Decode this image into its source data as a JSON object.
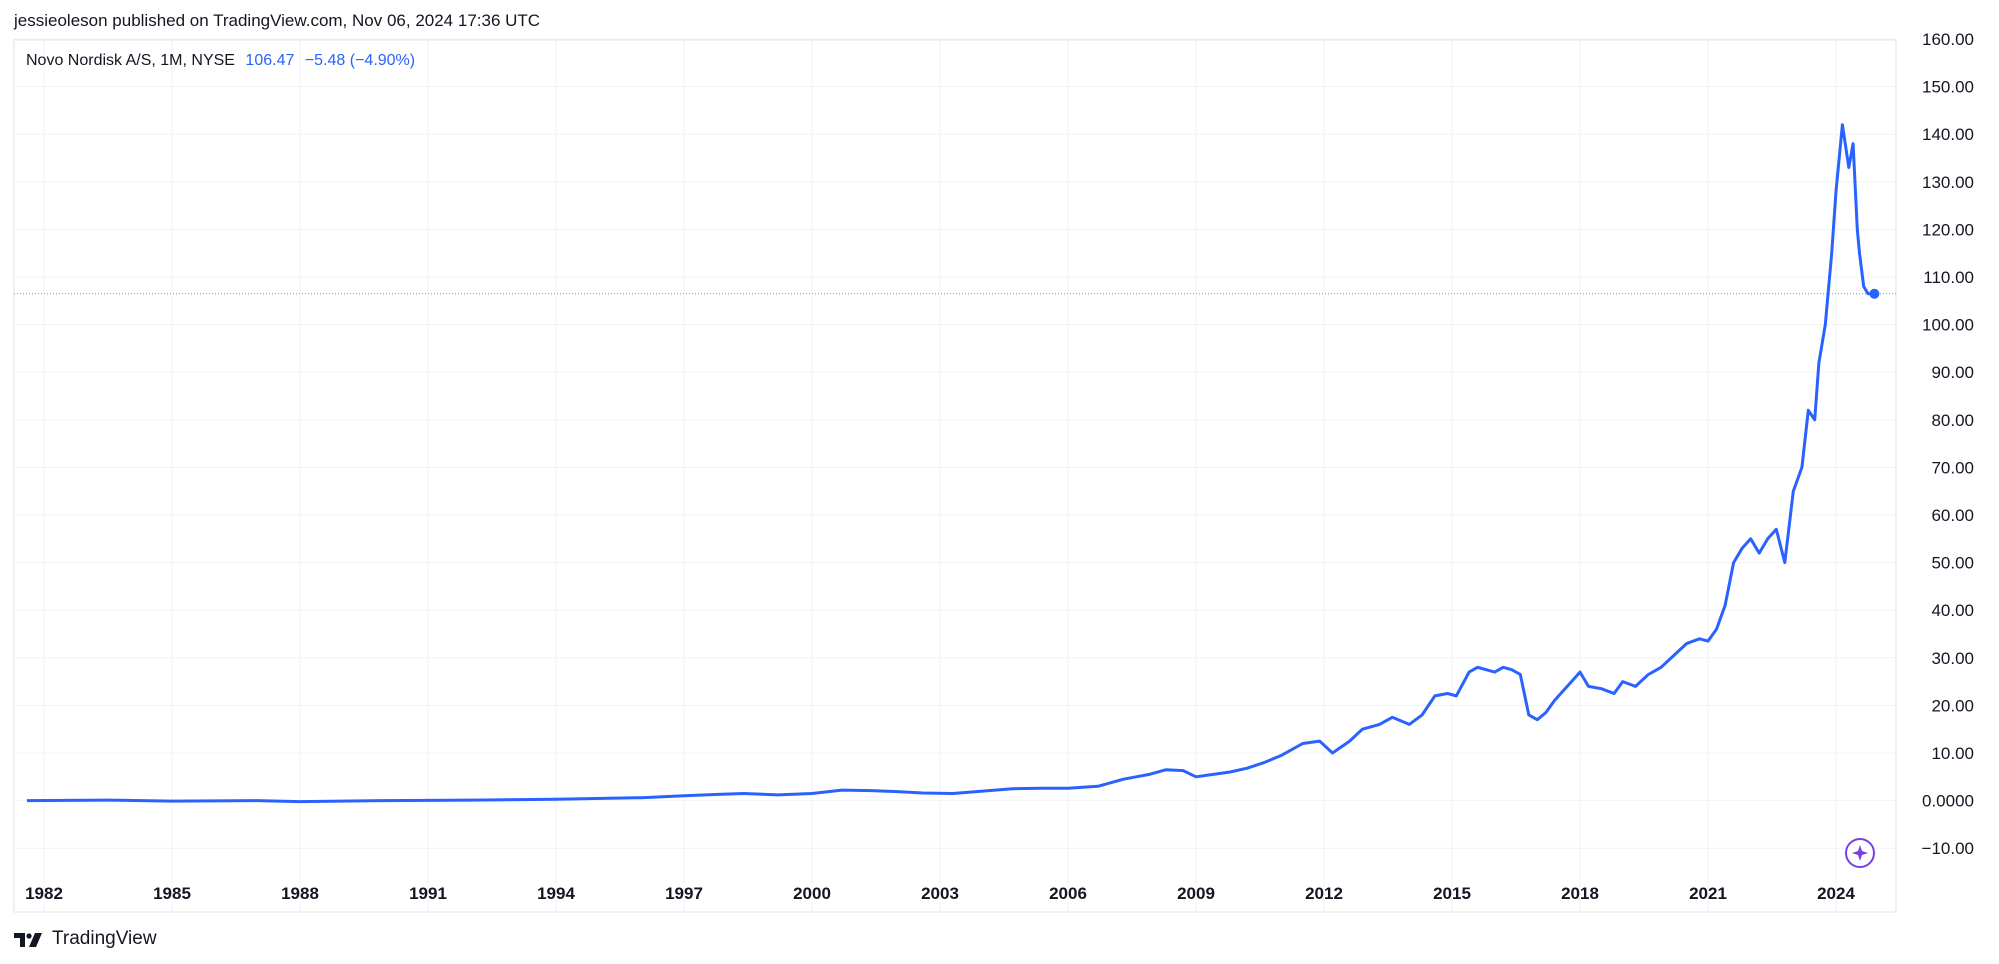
{
  "header": {
    "text": "jessieoleson published on TradingView.com, Nov 06, 2024 17:36 UTC"
  },
  "legend": {
    "symbol": "Novo Nordisk A/S, 1M, NYSE",
    "last": "106.47",
    "change": "−5.48 (−4.90%)"
  },
  "footer": {
    "brand": "TradingView",
    "logo_icon": "tradingview-logo-icon"
  },
  "colors": {
    "line": "#2962ff",
    "grid": "#f0f3fa",
    "text": "#131722",
    "marker": "#7b3fe4"
  },
  "chart_data": {
    "type": "line",
    "title": "",
    "xlabel": "",
    "ylabel": "",
    "ylim": [
      -12,
      160
    ],
    "xlim": [
      1981.6,
      2025.7
    ],
    "grid": true,
    "y_ticks": [
      "160.00",
      "150.00",
      "140.00",
      "130.00",
      "120.00",
      "110.00",
      "100.00",
      "90.00",
      "80.00",
      "70.00",
      "60.00",
      "50.00",
      "40.00",
      "30.00",
      "20.00",
      "10.00",
      "0.0000",
      "−10.00"
    ],
    "x_ticks": [
      "1982",
      "1985",
      "1988",
      "1991",
      "1994",
      "1997",
      "2000",
      "2003",
      "2006",
      "2009",
      "2012",
      "2015",
      "2018",
      "2021",
      "2024"
    ],
    "current_price": 106.47,
    "series": [
      {
        "name": "",
        "x": [
          1981.6,
          1983.5,
          1985,
          1987,
          1988,
          1990,
          1992,
          1994,
          1996,
          1997,
          1997.8,
          1998.4,
          1999.2,
          2000.0,
          2000.7,
          2001.4,
          2002.0,
          2002.6,
          2003.3,
          2004.0,
          2004.7,
          2005.4,
          2006.0,
          2006.7,
          2007.3,
          2007.9,
          2008.3,
          2008.7,
          2009.0,
          2009.4,
          2009.8,
          2010.2,
          2010.6,
          2011.0,
          2011.5,
          2011.9,
          2012.2,
          2012.6,
          2012.9,
          2013.3,
          2013.6,
          2014.0,
          2014.3,
          2014.6,
          2014.9,
          2015.1,
          2015.4,
          2015.6,
          2015.8,
          2016.0,
          2016.2,
          2016.4,
          2016.6,
          2016.8,
          2017.0,
          2017.2,
          2017.4,
          2017.6,
          2017.8,
          2018.0,
          2018.2,
          2018.5,
          2018.8,
          2019.0,
          2019.3,
          2019.6,
          2019.9,
          2020.2,
          2020.5,
          2020.8,
          2021.0,
          2021.2,
          2021.4,
          2021.6,
          2021.8,
          2022.0,
          2022.2,
          2022.4,
          2022.6,
          2022.8,
          2023.0,
          2023.2,
          2023.35,
          2023.5,
          2023.6,
          2023.75,
          2023.9,
          2024.0,
          2024.15,
          2024.3,
          2024.4,
          2024.5,
          2024.55,
          2024.65,
          2024.75,
          2024.9
        ],
        "y": [
          0.0,
          0.1,
          -0.1,
          0.0,
          -0.2,
          0.0,
          0.1,
          0.3,
          0.6,
          1.0,
          1.3,
          1.5,
          1.2,
          1.5,
          2.2,
          2.1,
          1.9,
          1.6,
          1.5,
          2.0,
          2.5,
          2.6,
          2.6,
          3.0,
          4.5,
          5.5,
          6.5,
          6.3,
          5.0,
          5.5,
          6.0,
          6.8,
          8.0,
          9.5,
          12.0,
          12.5,
          10.0,
          12.5,
          15.0,
          16.0,
          17.5,
          16.0,
          18.0,
          22.0,
          22.5,
          22.0,
          27.0,
          28.0,
          27.5,
          27.0,
          28.0,
          27.5,
          26.5,
          18.0,
          17.0,
          18.5,
          21.0,
          23.0,
          25.0,
          27.0,
          24.0,
          23.5,
          22.5,
          25.0,
          24.0,
          26.5,
          28.0,
          30.5,
          33.0,
          34.0,
          33.5,
          36.0,
          41.0,
          50.0,
          53.0,
          55.0,
          52.0,
          55.0,
          57.0,
          50.0,
          65.0,
          70.0,
          82.0,
          80.0,
          92.0,
          100.0,
          115.0,
          128.0,
          142.0,
          133.0,
          138.0,
          120.0,
          115.0,
          108.0,
          106.5,
          106.47
        ]
      }
    ]
  }
}
